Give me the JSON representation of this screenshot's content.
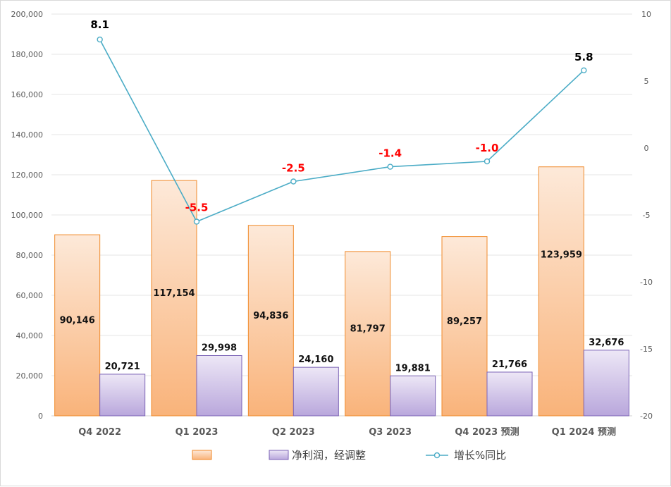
{
  "chart_data": {
    "type": "bar+line",
    "categories": [
      "Q4 2022",
      "Q1 2023",
      "Q2 2023",
      "Q3 2023",
      "Q4 2023 预测",
      "Q1 2024 预测"
    ],
    "series": [
      {
        "name": "",
        "type": "bar",
        "axis": "left",
        "color": "#f6a25a",
        "values": [
          90146,
          117154,
          94836,
          81797,
          89257,
          123959
        ],
        "labels": [
          "90,146",
          "117,154",
          "94,836",
          "81,797",
          "89,257",
          "123,959"
        ]
      },
      {
        "name": "净利润，经调整",
        "type": "bar",
        "axis": "left",
        "color": "#9f8ccb",
        "values": [
          20721,
          29998,
          24160,
          19881,
          21766,
          32676
        ],
        "labels": [
          "20,721",
          "29,998",
          "24,160",
          "19,881",
          "21,766",
          "32,676"
        ]
      },
      {
        "name": "增长%同比",
        "type": "line",
        "axis": "right",
        "color": "#4bacc6",
        "values": [
          8.1,
          -5.5,
          -2.5,
          -1.4,
          -1.0,
          5.8
        ],
        "labels": [
          "8.1",
          "-5.5",
          "-2.5",
          "-1.4",
          "-1.0",
          "5.8"
        ],
        "label_colors": [
          "#000000",
          "#ff0000",
          "#ff0000",
          "#ff0000",
          "#ff0000",
          "#000000"
        ]
      }
    ],
    "left_axis": {
      "min": 0,
      "max": 200000,
      "step": 20000,
      "ticks": [
        "0",
        "20,000",
        "40,000",
        "60,000",
        "80,000",
        "100,000",
        "120,000",
        "140,000",
        "160,000",
        "180,000",
        "200,000"
      ]
    },
    "right_axis": {
      "min": -20,
      "max": 10,
      "step": 5,
      "ticks": [
        "-20",
        "-15",
        "-10",
        "-5",
        "0",
        "5",
        "10"
      ]
    },
    "grid": true,
    "legend": "bottom-center"
  }
}
